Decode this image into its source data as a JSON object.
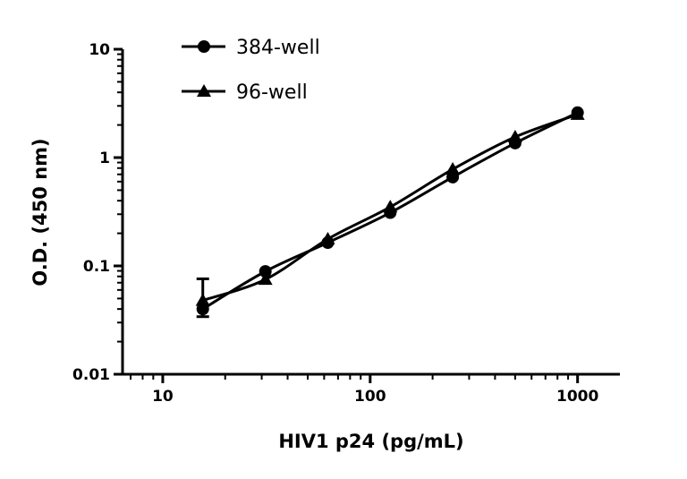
{
  "chart_data": {
    "type": "line",
    "title": "",
    "xlabel": "HIV1 p24 (pg/mL)",
    "ylabel": "O.D. (450 nm)",
    "xscale": "log",
    "yscale": "log",
    "xlim": [
      6.4,
      1600
    ],
    "ylim": [
      0.01,
      10
    ],
    "xticks": [
      10,
      100,
      1000
    ],
    "xtick_labels": [
      "10",
      "100",
      "1000"
    ],
    "yticks": [
      0.01,
      0.1,
      1,
      10
    ],
    "ytick_labels": [
      "0.01",
      "0.1",
      "1",
      "10"
    ],
    "grid": false,
    "legend_position": "top-left",
    "x": [
      15.6,
      31.25,
      62.5,
      125,
      250,
      500,
      1000
    ],
    "series": [
      {
        "name": "384-well",
        "marker": "circle",
        "color": "#000000",
        "values": [
          0.04,
          0.089,
          0.164,
          0.31,
          0.66,
          1.36,
          2.6
        ],
        "error_low": [
          0.034,
          null,
          null,
          null,
          null,
          null,
          null
        ],
        "error_high": [
          0.076,
          null,
          null,
          null,
          null,
          null,
          null
        ]
      },
      {
        "name": "96-well",
        "marker": "triangle",
        "color": "#000000",
        "values": [
          0.048,
          0.075,
          0.177,
          0.35,
          0.78,
          1.55,
          2.5
        ]
      }
    ]
  }
}
